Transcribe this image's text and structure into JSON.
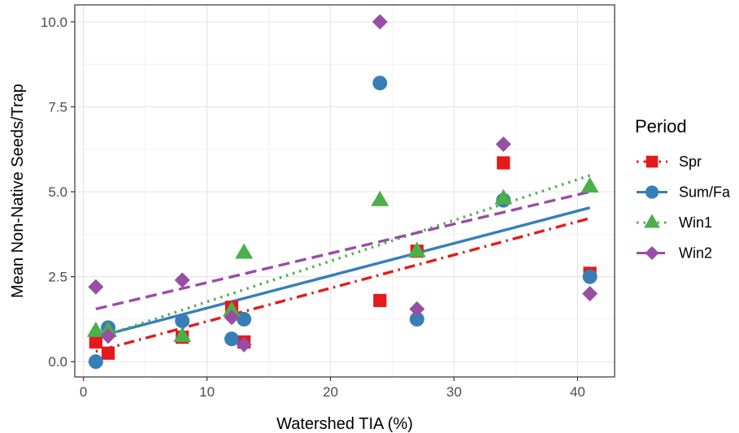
{
  "chart_data": {
    "type": "scatter",
    "xlabel": "Watershed TIA (%)",
    "ylabel": "Mean Non-Native Seeds/Trap",
    "xlim": [
      -0.7,
      43.0
    ],
    "ylim": [
      -0.45,
      10.5
    ],
    "x_ticks": [
      0,
      10,
      20,
      30,
      40
    ],
    "y_ticks": [
      0,
      2.5,
      5,
      7.5,
      10
    ],
    "x_tick_labels": [
      "0",
      "10",
      "20",
      "30",
      "40"
    ],
    "y_tick_labels": [
      "0.0",
      "2.5",
      "5.0",
      "7.5",
      "10.0"
    ],
    "grid": true,
    "legend": {
      "title": "Period",
      "position": "right"
    },
    "series": [
      {
        "name": "Spr",
        "color": "#e41a1c",
        "marker": "square",
        "line_style": "dotdash",
        "points": [
          [
            1,
            0.58
          ],
          [
            2,
            0.25
          ],
          [
            8,
            0.72
          ],
          [
            12,
            1.6
          ],
          [
            13,
            0.58
          ],
          [
            24,
            1.8
          ],
          [
            27,
            3.25
          ],
          [
            34,
            5.85
          ],
          [
            41,
            2.6
          ]
        ],
        "fit": [
          [
            1,
            0.3
          ],
          [
            41,
            4.22
          ]
        ]
      },
      {
        "name": "Sum/Fa",
        "color": "#377eb8",
        "marker": "circle",
        "line_style": "solid",
        "points": [
          [
            1,
            0.0
          ],
          [
            2,
            1.0
          ],
          [
            8,
            1.2
          ],
          [
            12,
            0.67
          ],
          [
            13,
            1.25
          ],
          [
            24,
            8.2
          ],
          [
            27,
            1.25
          ],
          [
            34,
            4.75
          ],
          [
            41,
            2.5
          ]
        ],
        "fit": [
          [
            1,
            0.72
          ],
          [
            41,
            4.53
          ]
        ]
      },
      {
        "name": "Win1",
        "color": "#4daf4a",
        "marker": "triangle",
        "line_style": "dotted",
        "points": [
          [
            1,
            0.9
          ],
          [
            2,
            0.9
          ],
          [
            8,
            0.75
          ],
          [
            12,
            1.5
          ],
          [
            13,
            3.2
          ],
          [
            24,
            4.75
          ],
          [
            27,
            3.25
          ],
          [
            34,
            4.8
          ],
          [
            41,
            5.15
          ]
        ],
        "fit": [
          [
            1,
            0.68
          ],
          [
            41,
            5.48
          ]
        ]
      },
      {
        "name": "Win2",
        "color": "#984ea3",
        "marker": "diamond",
        "line_style": "dashed",
        "points": [
          [
            1,
            2.2
          ],
          [
            2,
            0.75
          ],
          [
            8,
            2.4
          ],
          [
            12,
            1.3
          ],
          [
            13,
            0.5
          ],
          [
            24,
            10.0
          ],
          [
            27,
            1.55
          ],
          [
            34,
            6.4
          ],
          [
            41,
            2.0
          ]
        ],
        "fit": [
          [
            1,
            1.55
          ],
          [
            41,
            5.0
          ]
        ]
      }
    ]
  }
}
